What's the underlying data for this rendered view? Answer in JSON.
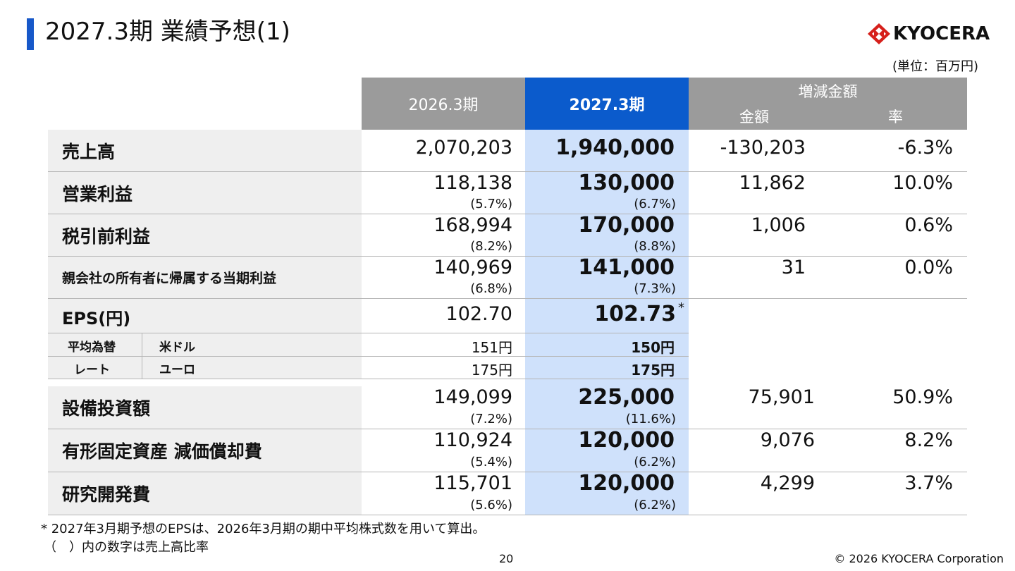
{
  "title": "2027.3期 業績予想(1)",
  "logo_text": "KYOCERA",
  "unit": "(単位：百万円)",
  "header": {
    "prev": "2026.3期",
    "cur": "2027.3期",
    "diff": "増減金額",
    "amount": "金額",
    "rate": "率"
  },
  "rows": [
    {
      "label": "売上高",
      "prev": "2,070,203",
      "cur": "1,940,000",
      "amount": "-130,203",
      "rate": "-6.3%"
    },
    {
      "label": "営業利益",
      "prev": "118,138",
      "prev_ratio": "(5.7%)",
      "cur": "130,000",
      "cur_ratio": "(6.7%)",
      "amount": "11,862",
      "rate": "10.0%"
    },
    {
      "label": "税引前利益",
      "prev": "168,994",
      "prev_ratio": "(8.2%)",
      "cur": "170,000",
      "cur_ratio": "(8.8%)",
      "amount": "1,006",
      "rate": "0.6%"
    },
    {
      "label": "親会社の所有者に帰属する当期利益",
      "prev": "140,969",
      "prev_ratio": "(6.8%)",
      "cur": "141,000",
      "cur_ratio": "(7.3%)",
      "amount": "31",
      "rate": "0.0%"
    },
    {
      "label": "EPS(円)",
      "prev": "102.70",
      "cur": "102.73",
      "cur_mark": "*"
    }
  ],
  "fx": {
    "label1": "平均為替",
    "label2": "レート",
    "usd_label": "米ドル",
    "usd_prev": "151円",
    "usd_cur": "150円",
    "eur_label": "ユーロ",
    "eur_prev": "175円",
    "eur_cur": "175円"
  },
  "rows2": [
    {
      "label": "設備投資額",
      "prev": "149,099",
      "prev_ratio": "(7.2%)",
      "cur": "225,000",
      "cur_ratio": "(11.6%)",
      "amount": "75,901",
      "rate": "50.9%"
    },
    {
      "label": "有形固定資産 減価償却費",
      "prev": "110,924",
      "prev_ratio": "(5.4%)",
      "cur": "120,000",
      "cur_ratio": "(6.2%)",
      "amount": "9,076",
      "rate": "8.2%"
    },
    {
      "label": "研究開発費",
      "prev": "115,701",
      "prev_ratio": "(5.6%)",
      "cur": "120,000",
      "cur_ratio": "(6.2%)",
      "amount": "4,299",
      "rate": "3.7%"
    }
  ],
  "footnotes": [
    "* 2027年3月期予想のEPSは、2026年3月期の期中平均株式数を用いて算出。",
    "（　）内の数字は売上高比率"
  ],
  "page_number": "20",
  "copyright": "© 2026 KYOCERA Corporation"
}
